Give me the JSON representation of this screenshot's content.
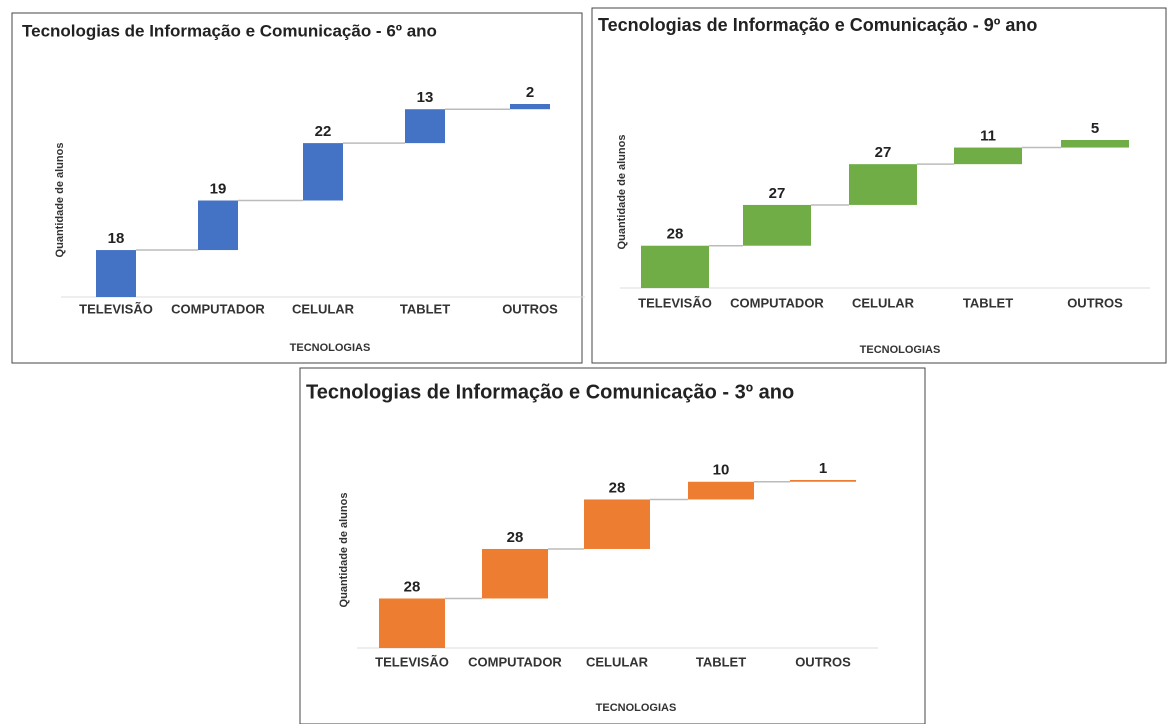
{
  "chart_data": [
    {
      "type": "waterfall",
      "title": "Tecnologias de Informação e Comunicação - 6º ano",
      "x_label": "TECNOLOGIAS",
      "y_label": "Quantidade de alunos",
      "categories": [
        "TELEVISÃO",
        "COMPUTADOR",
        "CELULAR",
        "TABLET",
        "OUTROS"
      ],
      "values": [
        18,
        19,
        22,
        13,
        2
      ],
      "color": "#4472c4"
    },
    {
      "type": "waterfall",
      "title": "Tecnologias de Informação e Comunicação - 9º ano",
      "x_label": "TECNOLOGIAS",
      "y_label": "Quantidade de alunos",
      "categories": [
        "TELEVISÃO",
        "COMPUTADOR",
        "CELULAR",
        "TABLET",
        "OUTROS"
      ],
      "values": [
        28,
        27,
        27,
        11,
        5
      ],
      "color": "#70ad47"
    },
    {
      "type": "waterfall",
      "title": "Tecnologias de Informação e Comunicação - 3º ano",
      "x_label": "TECNOLOGIAS",
      "y_label": "Quantidade de alunos",
      "categories": [
        "TELEVISÃO",
        "COMPUTADOR",
        "CELULAR",
        "TABLET",
        "OUTROS"
      ],
      "values": [
        28,
        28,
        28,
        10,
        1
      ],
      "color": "#ed7d31"
    }
  ]
}
